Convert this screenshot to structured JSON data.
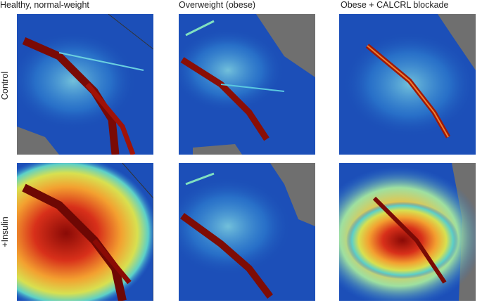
{
  "columns": [
    "Healthy, normal-weight",
    "Overweight (obese)",
    "Obese + CALCRL blockade"
  ],
  "rows": [
    "Control",
    "+Insulin"
  ]
}
